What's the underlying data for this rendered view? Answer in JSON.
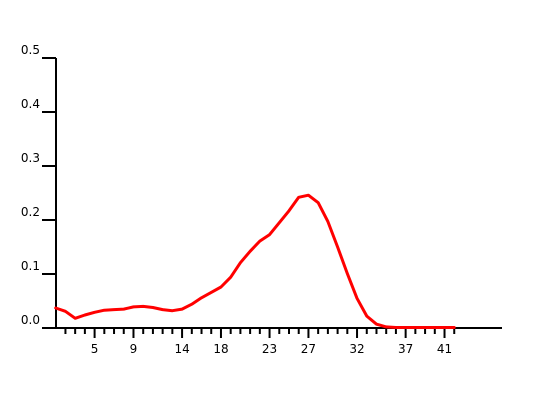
{
  "chart_data": {
    "type": "line",
    "title": "",
    "xlabel": "",
    "ylabel": "",
    "xlim": [
      0,
      42
    ],
    "ylim": [
      0.0,
      0.5
    ],
    "grid": false,
    "legend": "none",
    "x_tick_labels": [
      "5",
      "9",
      "14",
      "18",
      "23",
      "27",
      "32",
      "37",
      "41"
    ],
    "y_tick_labels": [
      "0.0",
      "0.1",
      "0.2",
      "0.3",
      "0.4",
      "0.5"
    ],
    "series": [
      {
        "color": "#ff0000",
        "x": [
          1,
          2,
          3,
          4,
          5,
          6,
          7,
          8,
          9,
          10,
          11,
          12,
          13,
          14,
          15,
          16,
          17,
          18,
          19,
          20,
          21,
          22,
          23,
          24,
          25,
          26,
          27,
          28,
          29,
          30,
          31,
          32,
          33,
          34,
          35,
          36,
          37,
          38,
          39,
          40,
          41,
          42
        ],
        "y": [
          0.037,
          0.031,
          0.018,
          0.024,
          0.029,
          0.033,
          0.034,
          0.035,
          0.039,
          0.04,
          0.038,
          0.034,
          0.032,
          0.035,
          0.044,
          0.056,
          0.066,
          0.076,
          0.094,
          0.121,
          0.142,
          0.161,
          0.173,
          0.195,
          0.217,
          0.242,
          0.246,
          0.232,
          0.197,
          0.15,
          0.101,
          0.055,
          0.022,
          0.007,
          0.002,
          0.001,
          0.001,
          0.001,
          0.001,
          0.001,
          0.001,
          0.001
        ]
      }
    ]
  }
}
